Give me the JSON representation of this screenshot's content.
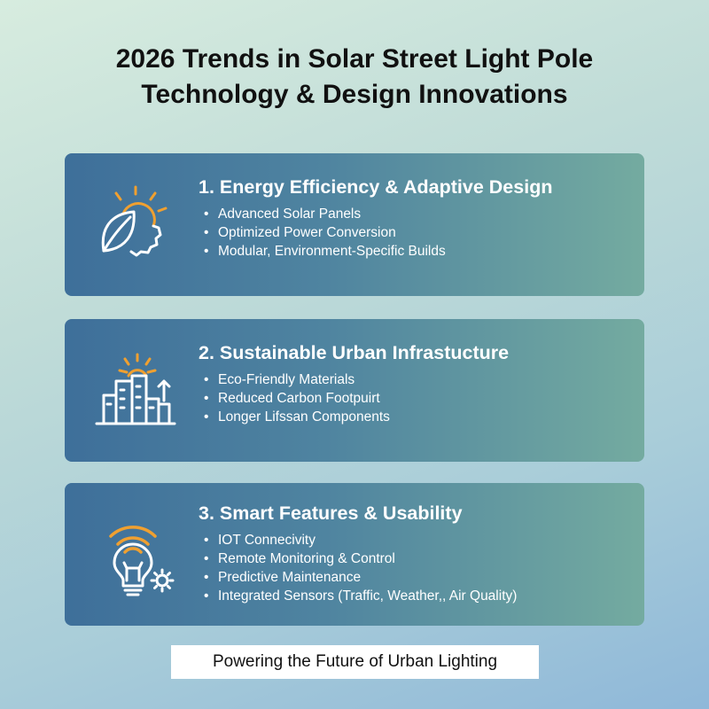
{
  "title": {
    "line1": "2026 Trends in Solar Street Light Pole",
    "line2": "Technology & Design Innovations"
  },
  "cards": [
    {
      "title": "1. Energy Efficiency & Adaptive Design",
      "icon": "leaf-sun-gear-icon",
      "items": [
        "Advanced Solar Panels",
        "Optimized Power Conversion",
        "Modular, Environment-Specific Builds"
      ]
    },
    {
      "title": "2. Sustainable Urban Infrastucture",
      "icon": "city-sun-icon",
      "items": [
        "Eco-Friendly Materials",
        "Reduced Carbon Footpuirt",
        "Longer Lifssan Components"
      ]
    },
    {
      "title": "3. Smart Features & Usability",
      "icon": "smart-bulb-wifi-icon",
      "items": [
        "IOT Connecivity",
        "Remote Monitoring & Control",
        "Predictive Maintenance",
        "Integrated Sensors (Traffic, Weather,, Air Quality)"
      ]
    }
  ],
  "footer": "Powering the Future of Urban Lighting",
  "colors": {
    "accent_orange": "#f0a030",
    "card_start": "#3e6f9a",
    "card_end": "#74aba0"
  }
}
